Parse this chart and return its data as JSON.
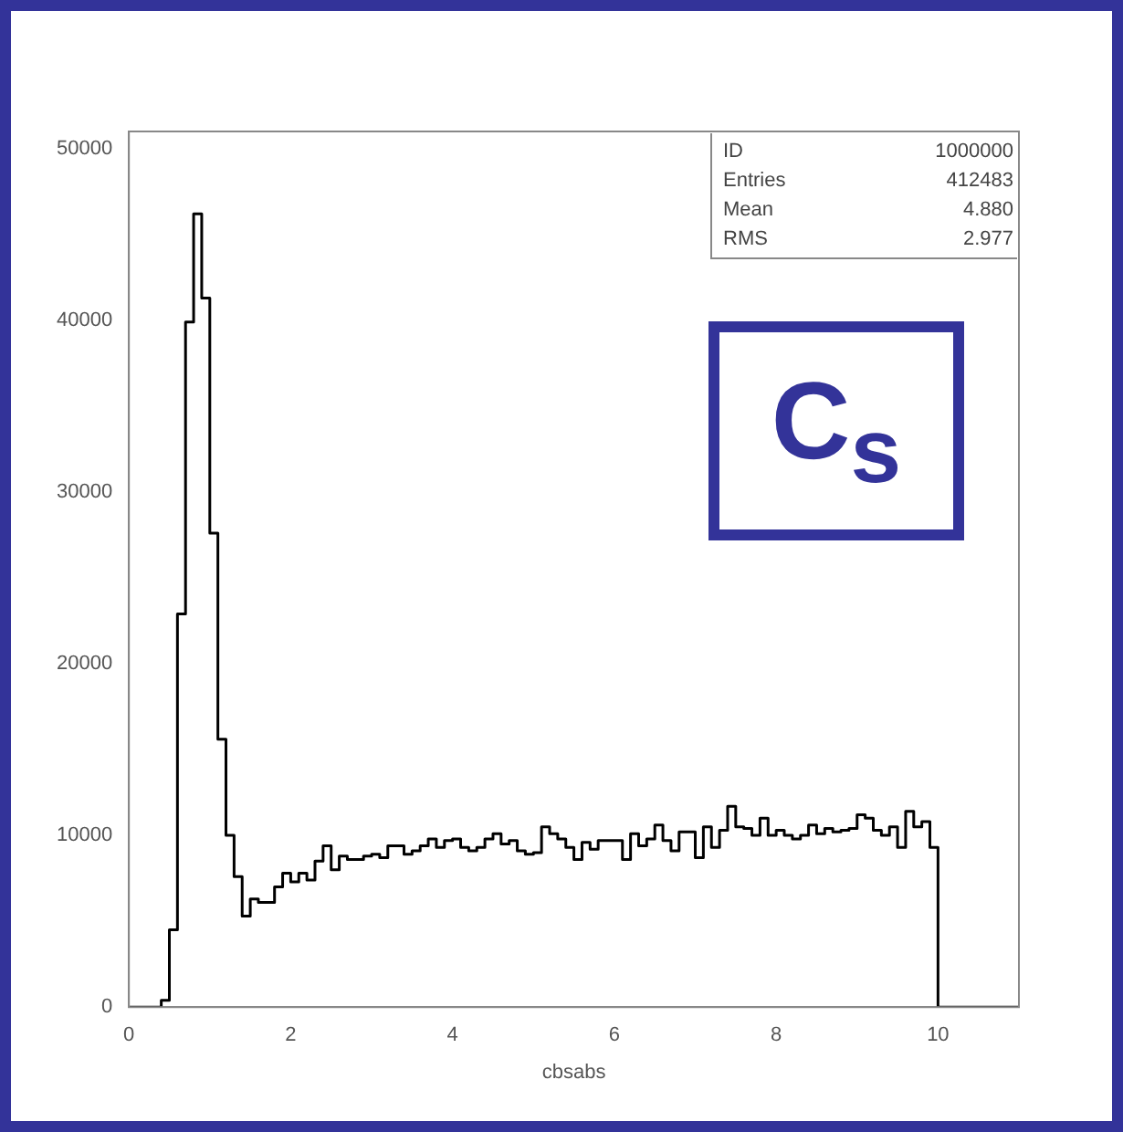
{
  "chart_data": {
    "type": "histogram",
    "xlabel": "cbsabs",
    "bins": [
      0,
      0.1,
      0.2,
      0.3,
      0.4,
      0.5,
      0.6,
      0.7,
      0.8,
      0.9,
      1,
      1.1,
      1.2,
      1.3,
      1.4,
      1.5,
      1.6,
      1.7,
      1.8,
      1.9,
      2,
      2.1,
      2.2,
      2.3,
      2.4,
      2.5,
      2.6,
      2.7,
      2.8,
      2.9,
      3,
      3.1,
      3.2,
      3.3,
      3.4,
      3.5,
      3.6,
      3.7,
      3.8,
      3.9,
      4,
      4.1,
      4.2,
      4.3,
      4.4,
      4.5,
      4.6,
      4.7,
      4.8,
      4.9,
      5,
      5.1,
      5.2,
      5.3,
      5.4,
      5.5,
      5.6,
      5.7,
      5.8,
      5.9,
      6,
      6.1,
      6.2,
      6.3,
      6.4,
      6.5,
      6.6,
      6.7,
      6.8,
      6.9,
      7,
      7.1,
      7.2,
      7.3,
      7.4,
      7.5,
      7.6,
      7.7,
      7.8,
      7.9,
      8,
      8.1,
      8.2,
      8.3,
      8.4,
      8.5,
      8.6,
      8.7,
      8.8,
      8.9,
      9,
      9.1,
      9.2,
      9.3,
      9.4,
      9.5,
      9.6,
      9.7,
      9.8,
      9.9,
      10,
      10.1,
      10.2,
      10.3,
      10.4,
      10.5,
      10.6,
      10.7,
      10.8,
      10.9,
      11
    ],
    "values": [
      0,
      0,
      0,
      0,
      400,
      4500,
      22900,
      39900,
      46200,
      41300,
      27600,
      15600,
      10000,
      7600,
      5300,
      6300,
      6100,
      6100,
      7000,
      7800,
      7300,
      7800,
      7400,
      8500,
      9400,
      8000,
      8800,
      8600,
      8600,
      8800,
      8900,
      8700,
      9400,
      9400,
      8900,
      9100,
      9400,
      9800,
      9300,
      9700,
      9800,
      9300,
      9100,
      9300,
      9800,
      10100,
      9500,
      9700,
      9100,
      8900,
      9000,
      10500,
      10100,
      9800,
      9300,
      8600,
      9600,
      9200,
      9700,
      9700,
      9700,
      8600,
      10100,
      9400,
      9800,
      10600,
      9700,
      9100,
      10200,
      10200,
      8700,
      10500,
      9300,
      10300,
      11700,
      10500,
      10400,
      10000,
      11000,
      10000,
      10300,
      10000,
      9800,
      10000,
      10600,
      10100,
      10400,
      10200,
      10300,
      10400,
      11200,
      11000,
      10300,
      10000,
      10500,
      9300,
      11400,
      10500,
      10800,
      9300,
      0,
      0,
      0,
      0,
      0,
      0,
      0,
      0,
      0,
      0
    ],
    "color": "#000000",
    "xlim": [
      0,
      11
    ],
    "xticks": [
      0,
      2,
      4,
      6,
      8,
      10
    ],
    "ylim": [
      0,
      51000
    ],
    "yticks": [
      0,
      10000,
      20000,
      30000,
      40000,
      50000
    ],
    "annotations": [
      "ID",
      "1000000",
      "Entries",
      "412483",
      "Mean",
      "4.880",
      "RMS",
      "2.977",
      "C$_{s}$"
    ]
  }
}
